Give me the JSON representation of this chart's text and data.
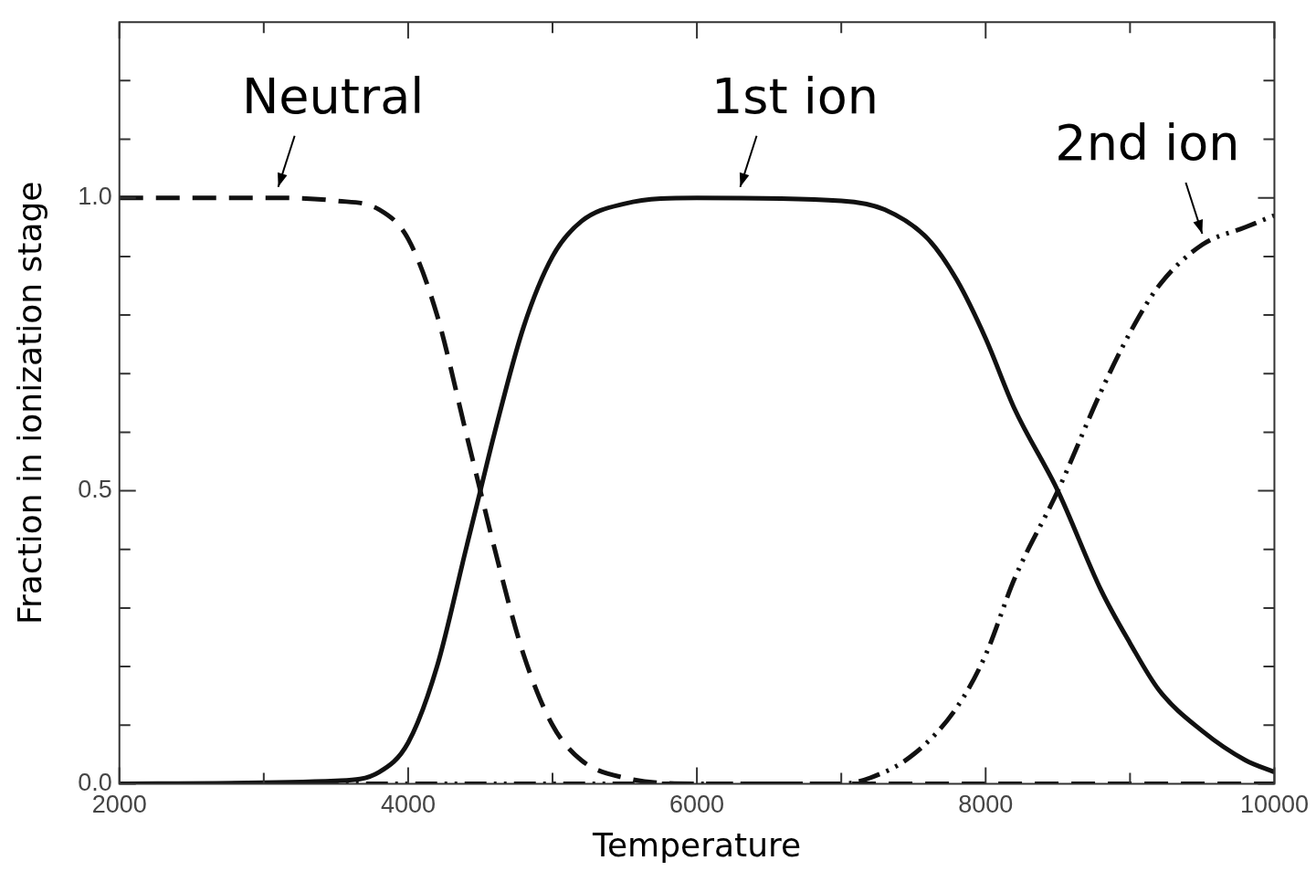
{
  "chart_data": {
    "type": "line",
    "xlabel": "Temperature",
    "ylabel": "Fraction in ionization stage",
    "xlim": [
      2000,
      10000
    ],
    "xticks": [
      2000,
      {
        "value": 3000,
        "label": null
      },
      4000,
      {
        "value": 5000,
        "label": null
      },
      6000,
      {
        "value": 7000,
        "label": null
      },
      8000,
      {
        "value": 9000,
        "label": null
      },
      10000
    ],
    "ylim": [
      0,
      1.3
    ],
    "yticks": [
      {
        "value": 0,
        "label": "0.0"
      },
      {
        "value": 0.1,
        "label": null
      },
      {
        "value": 0.2,
        "label": null
      },
      {
        "value": 0.3,
        "label": null
      },
      {
        "value": 0.4,
        "label": null
      },
      0.5,
      {
        "value": 0.6,
        "label": null
      },
      {
        "value": 0.7,
        "label": null
      },
      {
        "value": 0.8,
        "label": null
      },
      {
        "value": 0.9,
        "label": null
      },
      {
        "value": 1,
        "label": "1.0"
      },
      {
        "value": 1.1,
        "label": null
      },
      {
        "value": 1.2,
        "label": null
      }
    ],
    "grid": false,
    "legend": false,
    "marker": "none",
    "series": [
      {
        "color": "#111111",
        "line_style": "dashed",
        "x": [
          2000,
          3000,
          3500,
          3800,
          4000,
          4200,
          4400,
          4500,
          4600,
          4800,
          5000,
          5200,
          5500,
          6000,
          10000
        ],
        "values": [
          1,
          1,
          0.995,
          0.98,
          0.93,
          0.8,
          0.6,
          0.5,
          0.4,
          0.22,
          0.1,
          0.04,
          0.01,
          0,
          0
        ]
      },
      {
        "color": "#111111",
        "line_style": "solid",
        "x": [
          2000,
          3500,
          3800,
          4000,
          4200,
          4400,
          4500,
          4600,
          4800,
          5000,
          5200,
          5500,
          6000,
          7000,
          7300,
          7600,
          7800,
          8000,
          8200,
          8500,
          8800,
          9000,
          9200,
          9500,
          9800,
          10000
        ],
        "values": [
          0,
          0.005,
          0.02,
          0.07,
          0.2,
          0.4,
          0.5,
          0.6,
          0.78,
          0.9,
          0.96,
          0.99,
          1,
          0.995,
          0.98,
          0.93,
          0.86,
          0.76,
          0.64,
          0.5,
          0.33,
          0.24,
          0.16,
          0.09,
          0.04,
          0.02
        ]
      },
      {
        "color": "#111111",
        "line_style": "dashdotdot",
        "x": [
          2000,
          7000,
          7200,
          7500,
          7800,
          8000,
          8200,
          8500,
          8800,
          9000,
          9200,
          9500,
          9800,
          10000
        ],
        "values": [
          0,
          0,
          0.01,
          0.05,
          0.13,
          0.22,
          0.35,
          0.5,
          0.67,
          0.77,
          0.85,
          0.92,
          0.95,
          0.97
        ]
      }
    ],
    "annotations": [
      {
        "text": "Neutral",
        "x": 3100,
        "y": 1
      },
      {
        "text": "1st ion",
        "x": 6300,
        "y": 1
      },
      {
        "text": "2nd ion",
        "x": 9500,
        "y": 0.92
      }
    ]
  }
}
